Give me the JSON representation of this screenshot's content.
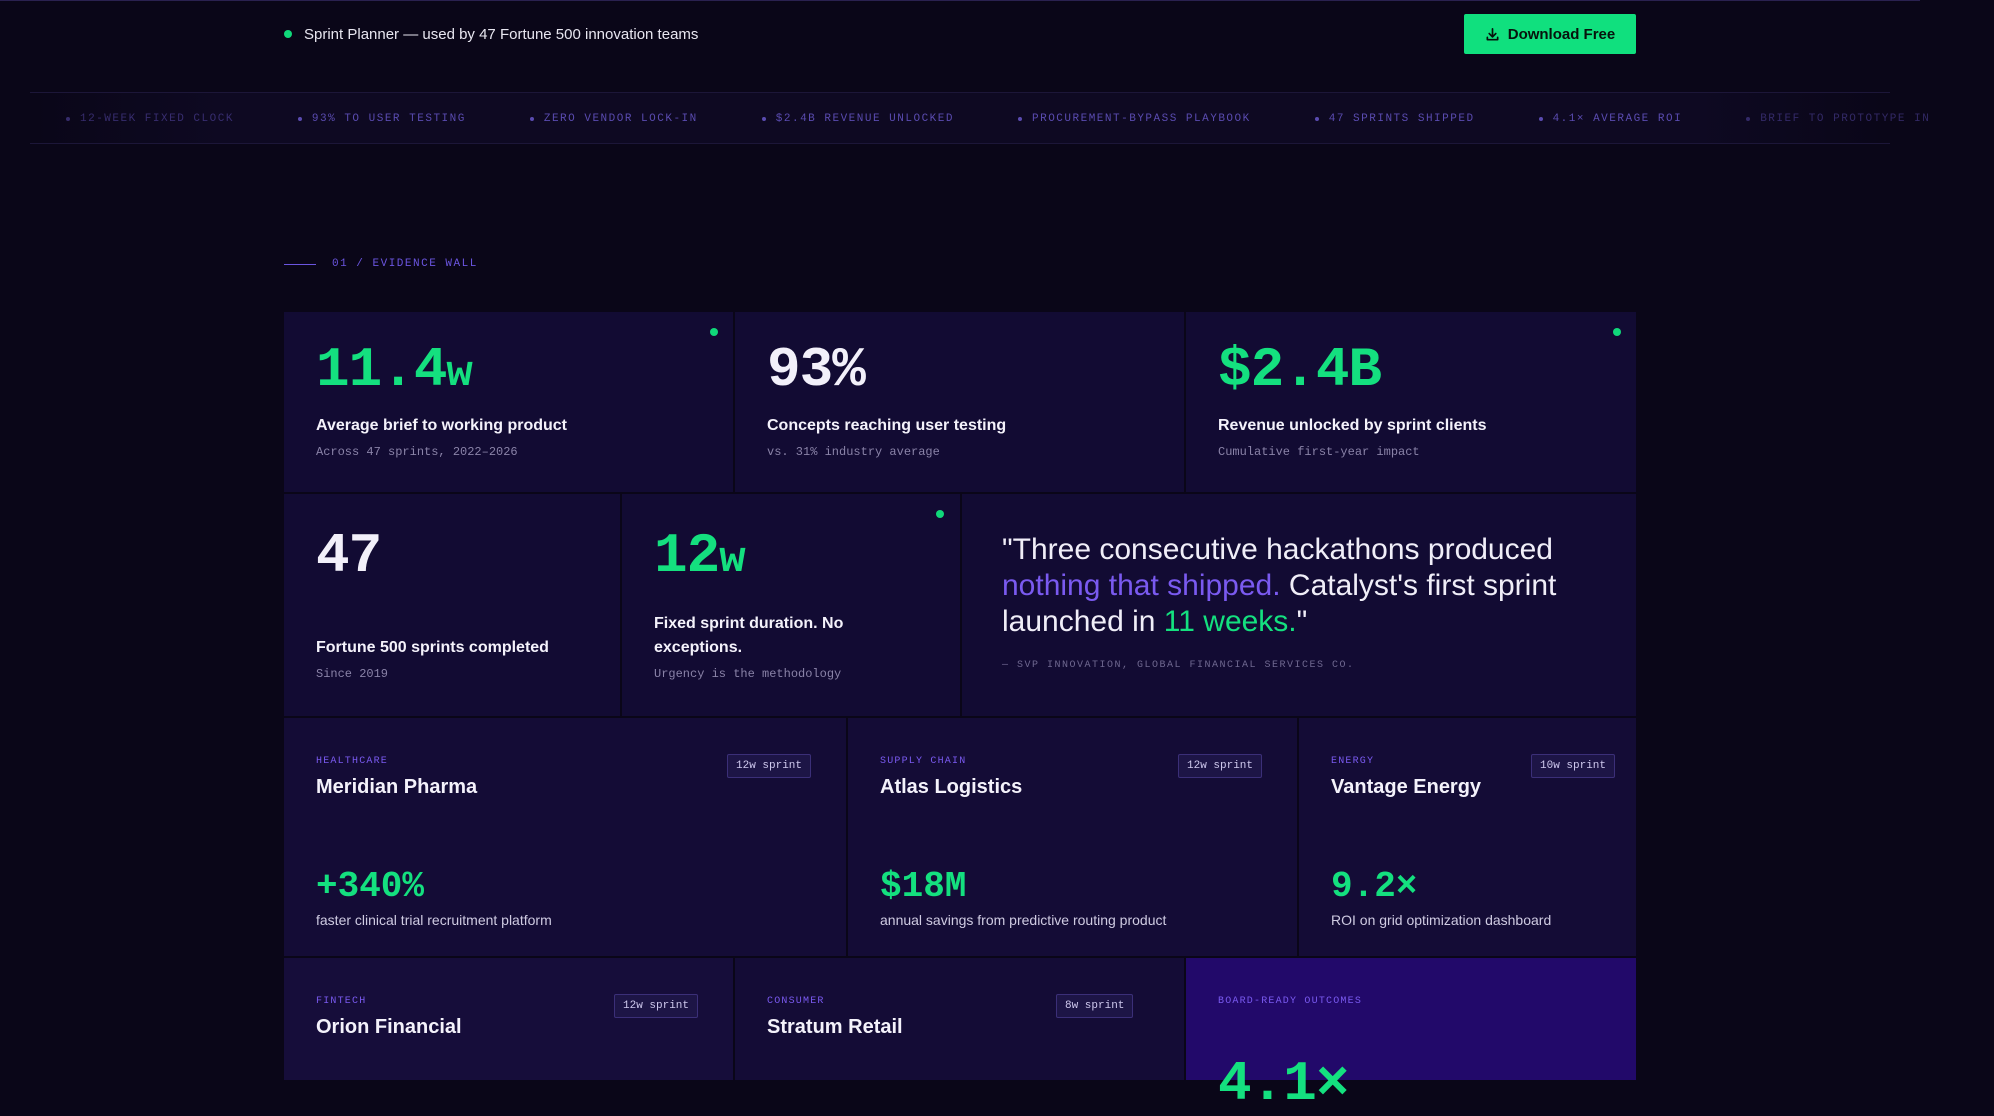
{
  "topbar": {
    "notice": "Sprint Planner — used by 47 Fortune 500 innovation teams",
    "download_label": "Download Free"
  },
  "ticker": {
    "items": [
      "12-WEEK FIXED CLOCK",
      "93% TO USER TESTING",
      "ZERO VENDOR LOCK-IN",
      "$2.4B REVENUE UNLOCKED",
      "PROCUREMENT-BYPASS PLAYBOOK",
      "47 SPRINTS SHIPPED",
      "4.1× AVERAGE ROI",
      "BRIEF TO PROTOTYPE IN"
    ]
  },
  "section": {
    "label": "01 / EVIDENCE WALL"
  },
  "stats": [
    {
      "value": "11.4",
      "unit": "w",
      "title": "Average brief to working product",
      "sub": "Across 47 sprints, 2022–2026"
    },
    {
      "value": "93%",
      "unit": "",
      "title": "Concepts reaching user testing",
      "sub": "vs. 31% industry average"
    },
    {
      "value": "$2.4B",
      "unit": "",
      "title": "Revenue unlocked by sprint clients",
      "sub": "Cumulative first-year impact"
    },
    {
      "value": "47",
      "unit": "",
      "title": "Fortune 500 sprints completed",
      "sub": "Since 2019"
    },
    {
      "value": "12",
      "unit": "w",
      "title": "Fixed sprint duration. No exceptions.",
      "sub": "Urgency is the methodology"
    }
  ],
  "quote": {
    "part1": "\"Three consecutive hackathons produced ",
    "highlight1": "nothing that shipped.",
    "part2": " Catalyst's first sprint launched in ",
    "highlight2": "11 weeks.",
    "part3": "\"",
    "attribution": "— SVP INNOVATION, GLOBAL FINANCIAL SERVICES CO."
  },
  "cases": [
    {
      "tag": "HEALTHCARE",
      "name": "Meridian Pharma",
      "badge": "12w sprint",
      "metric": "+340%",
      "desc": "faster clinical trial recruitment platform"
    },
    {
      "tag": "SUPPLY CHAIN",
      "name": "Atlas Logistics",
      "badge": "12w sprint",
      "metric": "$18M",
      "desc": "annual savings from predictive routing product"
    },
    {
      "tag": "ENERGY",
      "name": "Vantage Energy",
      "badge": "10w sprint",
      "metric": "9.2×",
      "desc": "ROI on grid optimization dashboard"
    },
    {
      "tag": "FINTECH",
      "name": "Orion Financial",
      "badge": "12w sprint"
    },
    {
      "tag": "CONSUMER",
      "name": "Stratum Retail",
      "badge": "8w sprint"
    }
  ],
  "outcomes": {
    "label": "BOARD-READY OUTCOMES",
    "value": "4.1×"
  },
  "colors": {
    "accent_green": "#14e07f",
    "accent_purple": "#7a5af0",
    "background": "#0a0618"
  }
}
